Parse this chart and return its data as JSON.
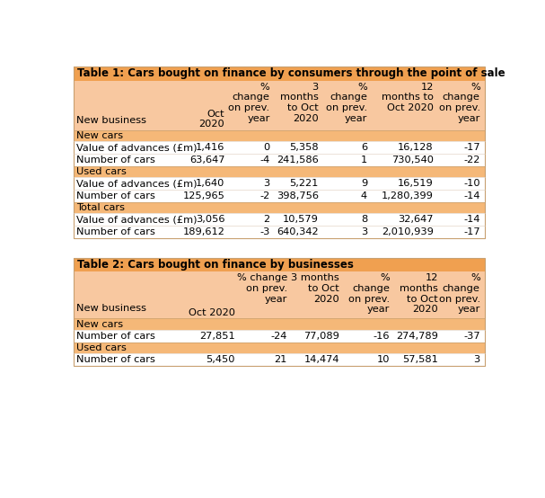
{
  "table1_title": "Table 1: Cars bought on finance by consumers through the point of sale",
  "table2_title": "Table 2: Cars bought on finance by businesses",
  "title_bg": "#F0A050",
  "header_bg": "#F5C896",
  "section_bg": "#F5B878",
  "row_bg": "#FFFFFF",
  "title_text_color": "#000000",
  "font_size": 8.2,
  "title_font_size": 8.5,
  "table1_sections": [
    {
      "label": "New cars",
      "rows": [
        [
          "Value of advances (£m)",
          "1,416",
          "0",
          "5,358",
          "6",
          "16,128",
          "-17"
        ],
        [
          "Number of cars",
          "63,647",
          "-4",
          "241,586",
          "1",
          "730,540",
          "-22"
        ]
      ]
    },
    {
      "label": "Used cars",
      "rows": [
        [
          "Value of advances (£m)",
          "1,640",
          "3",
          "5,221",
          "9",
          "16,519",
          "-10"
        ],
        [
          "Number of cars",
          "125,965",
          "-2",
          "398,756",
          "4",
          "1,280,399",
          "-14"
        ]
      ]
    },
    {
      "label": "Total cars",
      "rows": [
        [
          "Value of advances (£m)",
          "3,056",
          "2",
          "10,579",
          "8",
          "32,647",
          "-14"
        ],
        [
          "Number of cars",
          "189,612",
          "-3",
          "640,342",
          "3",
          "2,010,939",
          "-17"
        ]
      ]
    }
  ],
  "table2_sections": [
    {
      "label": "New cars",
      "rows": [
        [
          "Number of cars",
          "27,851",
          "-24",
          "77,089",
          "-16",
          "274,789",
          "-37"
        ]
      ]
    },
    {
      "label": "Used cars",
      "rows": [
        [
          "Number of cars",
          "5,450",
          "21",
          "14,474",
          "10",
          "57,581",
          "3"
        ]
      ]
    }
  ]
}
